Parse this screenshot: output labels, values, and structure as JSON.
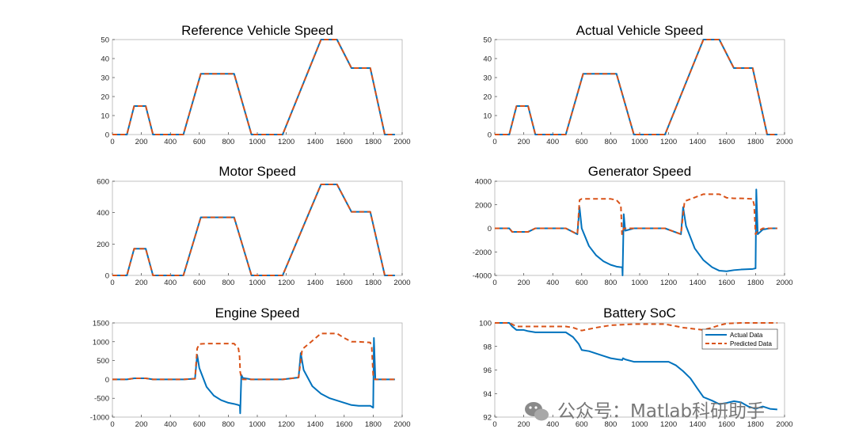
{
  "colors": {
    "actual": "#0072BD",
    "predicted": "#D95319",
    "axis": "#262626",
    "frame": "#A6A6A6"
  },
  "legend": {
    "placement": "top-right",
    "entries": [
      "Actual Data",
      "Predicted Data"
    ]
  },
  "watermark": {
    "icon": "wechat-icon",
    "text": "公众号：Matlab科研助手"
  },
  "chart_data": [
    {
      "type": "line",
      "title": "Reference Vehicle Speed",
      "xlim": [
        0,
        2000
      ],
      "ylim": [
        0,
        50
      ],
      "xticks": [
        0,
        200,
        400,
        600,
        800,
        1000,
        1200,
        1400,
        1600,
        1800,
        2000
      ],
      "yticks": [
        0,
        10,
        20,
        30,
        40,
        50
      ],
      "grid": false,
      "series": [
        {
          "role": "actual",
          "style": "solid",
          "x": [
            0,
            100,
            150,
            230,
            280,
            490,
            610,
            840,
            960,
            1175,
            1440,
            1550,
            1650,
            1780,
            1880,
            1950
          ],
          "y": [
            0,
            0,
            15,
            15,
            0,
            0,
            32,
            32,
            0,
            0,
            50,
            50,
            35,
            35,
            0,
            0
          ]
        },
        {
          "role": "predicted",
          "style": "dashed",
          "x": [
            0,
            100,
            150,
            230,
            280,
            490,
            610,
            840,
            960,
            1175,
            1440,
            1550,
            1650,
            1780,
            1880,
            1950
          ],
          "y": [
            0,
            0,
            15,
            15,
            0,
            0,
            32,
            32,
            0,
            0,
            50,
            50,
            35,
            35,
            0,
            0
          ]
        }
      ]
    },
    {
      "type": "line",
      "title": "Actual Vehicle Speed",
      "xlim": [
        0,
        2000
      ],
      "ylim": [
        0,
        50
      ],
      "xticks": [
        0,
        200,
        400,
        600,
        800,
        1000,
        1200,
        1400,
        1600,
        1800,
        2000
      ],
      "yticks": [
        0,
        10,
        20,
        30,
        40,
        50
      ],
      "grid": false,
      "series": [
        {
          "role": "actual",
          "style": "solid",
          "x": [
            0,
            100,
            150,
            230,
            280,
            490,
            610,
            840,
            960,
            1175,
            1440,
            1550,
            1650,
            1780,
            1880,
            1950
          ],
          "y": [
            0,
            0,
            15,
            15,
            0,
            0,
            32,
            32,
            0,
            0,
            50,
            50,
            35,
            35,
            0,
            0
          ]
        },
        {
          "role": "predicted",
          "style": "dashed",
          "x": [
            0,
            100,
            150,
            230,
            280,
            490,
            610,
            840,
            960,
            1175,
            1440,
            1550,
            1650,
            1780,
            1880,
            1950
          ],
          "y": [
            0,
            0,
            15,
            15,
            0,
            0,
            32,
            32,
            0,
            0,
            50,
            50,
            35,
            35,
            0,
            0
          ]
        }
      ]
    },
    {
      "type": "line",
      "title": "Motor Speed",
      "xlim": [
        0,
        2000
      ],
      "ylim": [
        0,
        600
      ],
      "xticks": [
        0,
        200,
        400,
        600,
        800,
        1000,
        1200,
        1400,
        1600,
        1800,
        2000
      ],
      "yticks": [
        0,
        200,
        400,
        600
      ],
      "grid": false,
      "series": [
        {
          "role": "actual",
          "style": "solid",
          "x": [
            0,
            100,
            150,
            230,
            280,
            490,
            610,
            840,
            960,
            1175,
            1440,
            1550,
            1650,
            1780,
            1880,
            1950
          ],
          "y": [
            0,
            0,
            170,
            170,
            0,
            0,
            370,
            370,
            0,
            0,
            580,
            580,
            405,
            405,
            0,
            0
          ]
        },
        {
          "role": "predicted",
          "style": "dashed",
          "x": [
            0,
            100,
            150,
            230,
            280,
            490,
            610,
            840,
            960,
            1175,
            1440,
            1550,
            1650,
            1780,
            1880,
            1950
          ],
          "y": [
            0,
            0,
            170,
            170,
            0,
            0,
            370,
            370,
            0,
            0,
            580,
            580,
            405,
            405,
            0,
            0
          ]
        }
      ]
    },
    {
      "type": "line",
      "title": "Generator Speed",
      "xlim": [
        0,
        2000
      ],
      "ylim": [
        -4000,
        4000
      ],
      "xticks": [
        0,
        200,
        400,
        600,
        800,
        1000,
        1200,
        1400,
        1600,
        1800,
        2000
      ],
      "yticks": [
        -4000,
        -2000,
        0,
        2000,
        4000
      ],
      "grid": false,
      "series": [
        {
          "role": "actual",
          "style": "solid",
          "x": [
            0,
            100,
            120,
            150,
            200,
            230,
            280,
            490,
            570,
            585,
            600,
            650,
            700,
            750,
            800,
            840,
            870,
            880,
            882,
            890,
            900,
            960,
            1175,
            1285,
            1300,
            1320,
            1380,
            1440,
            1500,
            1550,
            1600,
            1650,
            1700,
            1780,
            1800,
            1805,
            1815,
            1850,
            1900,
            1950
          ],
          "y": [
            0,
            0,
            -300,
            -300,
            -300,
            -300,
            0,
            0,
            -500,
            1800,
            0,
            -1500,
            -2300,
            -2800,
            -3100,
            -3250,
            -3300,
            -3300,
            -4000,
            1200,
            -200,
            0,
            0,
            -500,
            1800,
            200,
            -1700,
            -2700,
            -3300,
            -3600,
            -3650,
            -3550,
            -3500,
            -3450,
            -3400,
            3300,
            -500,
            -100,
            0,
            0
          ]
        },
        {
          "role": "predicted",
          "style": "dashed",
          "x": [
            0,
            100,
            120,
            150,
            200,
            230,
            280,
            490,
            570,
            585,
            600,
            650,
            700,
            750,
            800,
            840,
            870,
            878,
            882,
            890,
            900,
            960,
            1175,
            1285,
            1310,
            1440,
            1550,
            1600,
            1650,
            1700,
            1780,
            1790,
            1800,
            1810,
            1850,
            1900,
            1950
          ],
          "y": [
            0,
            0,
            -300,
            -300,
            -300,
            -300,
            0,
            0,
            -500,
            2400,
            2500,
            2500,
            2500,
            2500,
            2500,
            2400,
            2000,
            -500,
            -300,
            0,
            0,
            0,
            0,
            -500,
            2300,
            2900,
            2900,
            2600,
            2550,
            2550,
            2500,
            2000,
            -500,
            -300,
            0,
            0,
            0
          ]
        }
      ]
    },
    {
      "type": "line",
      "title": "Engine Speed",
      "xlim": [
        0,
        2000
      ],
      "ylim": [
        -1000,
        1500
      ],
      "xticks": [
        0,
        200,
        400,
        600,
        800,
        1000,
        1200,
        1400,
        1600,
        1800,
        2000
      ],
      "yticks": [
        -1000,
        -500,
        0,
        500,
        1000,
        1500
      ],
      "grid": false,
      "series": [
        {
          "role": "actual",
          "style": "solid",
          "x": [
            0,
            100,
            150,
            230,
            280,
            490,
            570,
            585,
            600,
            650,
            700,
            750,
            800,
            840,
            870,
            880,
            882,
            890,
            900,
            960,
            1175,
            1285,
            1300,
            1320,
            1380,
            1440,
            1500,
            1550,
            1600,
            1650,
            1700,
            1780,
            1800,
            1805,
            1815,
            1850,
            1900,
            1950
          ],
          "y": [
            0,
            0,
            30,
            30,
            0,
            0,
            20,
            650,
            300,
            -200,
            -430,
            -550,
            -620,
            -650,
            -680,
            -700,
            -900,
            120,
            40,
            0,
            0,
            50,
            700,
            250,
            -180,
            -380,
            -500,
            -560,
            -620,
            -680,
            -700,
            -700,
            -750,
            1100,
            0,
            0,
            0,
            0
          ]
        },
        {
          "role": "predicted",
          "style": "dashed",
          "x": [
            0,
            100,
            150,
            230,
            280,
            490,
            570,
            585,
            600,
            650,
            700,
            750,
            800,
            840,
            870,
            878,
            882,
            890,
            900,
            960,
            1175,
            1285,
            1310,
            1440,
            1550,
            1600,
            1650,
            1700,
            1780,
            1790,
            1800,
            1810,
            1850,
            1900,
            1950
          ],
          "y": [
            0,
            0,
            30,
            30,
            0,
            0,
            20,
            820,
            940,
            950,
            950,
            950,
            950,
            950,
            820,
            600,
            200,
            50,
            0,
            0,
            0,
            50,
            800,
            1220,
            1220,
            1100,
            1000,
            1000,
            980,
            850,
            100,
            0,
            0,
            0,
            0
          ]
        }
      ]
    },
    {
      "type": "line",
      "title": "Battery SoC",
      "xlim": [
        0,
        2000
      ],
      "ylim": [
        92,
        100
      ],
      "xticks": [
        0,
        200,
        400,
        600,
        800,
        1000,
        1200,
        1400,
        1600,
        1800,
        2000
      ],
      "yticks": [
        92,
        94,
        96,
        98,
        100
      ],
      "grid": false,
      "legend": [
        "Actual Data",
        "Predicted Data"
      ],
      "series": [
        {
          "name": "Actual Data",
          "role": "actual",
          "style": "solid",
          "x": [
            0,
            100,
            120,
            150,
            200,
            230,
            280,
            490,
            540,
            580,
            600,
            650,
            700,
            750,
            800,
            850,
            880,
            885,
            900,
            960,
            1000,
            1200,
            1250,
            1300,
            1350,
            1400,
            1440,
            1500,
            1550,
            1600,
            1650,
            1700,
            1750,
            1800,
            1850,
            1900,
            1950
          ],
          "y": [
            100,
            100,
            99.7,
            99.4,
            99.4,
            99.3,
            99.2,
            99.2,
            98.8,
            98.2,
            97.7,
            97.6,
            97.4,
            97.2,
            97.0,
            96.9,
            96.85,
            97.0,
            96.9,
            96.7,
            96.7,
            96.7,
            96.4,
            95.9,
            95.3,
            94.4,
            93.7,
            93.4,
            93.1,
            93.2,
            93.35,
            93.25,
            92.9,
            92.7,
            92.9,
            92.7,
            92.65
          ]
        },
        {
          "name": "Predicted Data",
          "role": "predicted",
          "style": "dashed",
          "x": [
            0,
            100,
            150,
            280,
            490,
            540,
            600,
            700,
            800,
            880,
            960,
            1175,
            1300,
            1440,
            1500,
            1550,
            1600,
            1700,
            1800,
            1950
          ],
          "y": [
            100,
            100,
            99.7,
            99.7,
            99.7,
            99.6,
            99.35,
            99.6,
            99.8,
            99.85,
            99.9,
            99.9,
            99.6,
            99.4,
            99.6,
            99.8,
            99.95,
            100,
            100,
            100
          ]
        }
      ]
    }
  ]
}
